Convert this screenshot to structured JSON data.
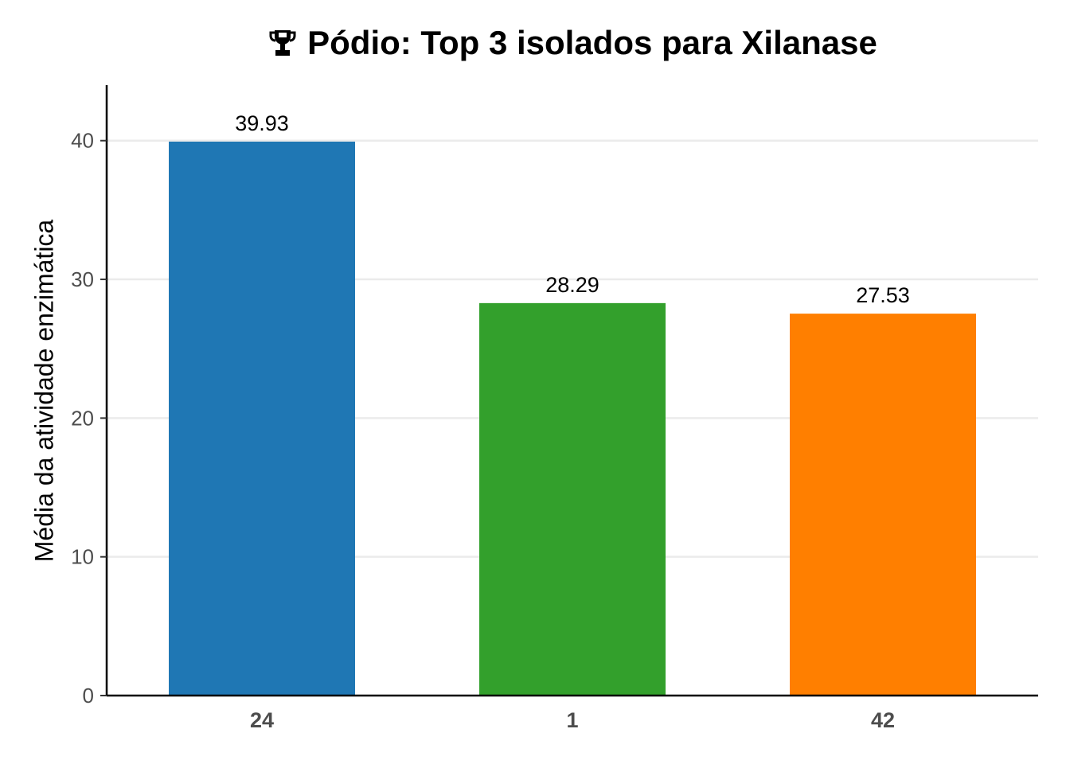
{
  "chart_data": {
    "type": "bar",
    "title": "Pódio: Top 3 isolados para Xilanase",
    "title_icon": "trophy-icon",
    "xlabel": "",
    "ylabel": "Média da atividade enzimática",
    "categories": [
      "24",
      "1",
      "42"
    ],
    "values": [
      39.93,
      28.29,
      27.53
    ],
    "data_labels": [
      "39.93",
      "28.29",
      "27.53"
    ],
    "colors": [
      "#1f77b4",
      "#33a02c",
      "#ff7f00"
    ],
    "ylim": [
      0,
      44
    ],
    "yticks": [
      0,
      10,
      20,
      30,
      40
    ],
    "ytick_labels": [
      "0",
      "10",
      "20",
      "30",
      "40"
    ],
    "grid": "horizontal",
    "legend": "none"
  }
}
